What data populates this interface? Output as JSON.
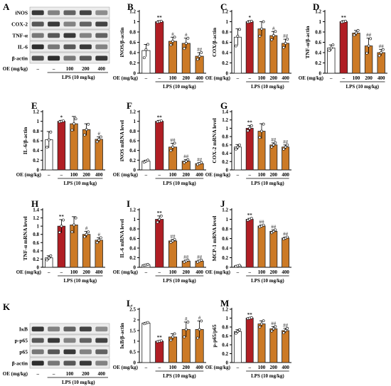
{
  "figure": {
    "colors": {
      "control": "#ffffff",
      "lps": "#b01e24",
      "oe": "#cc7a26",
      "bar_edge": "#222222",
      "sig_single": "#666666",
      "sig_double": "#222222"
    }
  },
  "blots": {
    "A": {
      "label": "A",
      "rows": [
        "iNOS",
        "COX-2",
        "TNF-α",
        "IL-6",
        "β-actin"
      ],
      "oe_label": "OE (mg/kg)",
      "lanes": [
        "–",
        "–",
        "100",
        "200",
        "400"
      ],
      "lps_label": "LPS (10 mg/kg)"
    },
    "K": {
      "label": "K",
      "rows": [
        "IκB",
        "p-p65",
        "p65",
        "β-actin"
      ],
      "oe_label": "OE (mg/kg)",
      "lanes": [
        "–",
        "–",
        "100",
        "200",
        "400"
      ],
      "lps_label": "LPS (10 mg/kg)"
    }
  },
  "chart_data": [
    {
      "id": "B",
      "type": "bar",
      "categories": [
        "–",
        "–",
        "100",
        "200",
        "400"
      ],
      "ylabel": "iNOS/β-actin",
      "ylim": [
        0,
        1.2
      ],
      "yticks": [
        0,
        0.2,
        0.4,
        0.6,
        0.8,
        1.0,
        1.2
      ],
      "ytick_labels": [
        "0",
        "0.2",
        "0.4",
        "0.6",
        "0.8",
        "1",
        "1.2"
      ],
      "values": [
        0.44,
        1.0,
        0.62,
        0.58,
        0.33
      ],
      "errors": [
        0.12,
        0.02,
        0.08,
        0.1,
        0.07
      ],
      "points": [
        [
          0.3,
          0.46,
          0.56
        ],
        [
          0.99,
          1.0,
          1.01
        ],
        [
          0.55,
          0.62,
          0.7
        ],
        [
          0.48,
          0.58,
          0.68
        ],
        [
          0.27,
          0.33,
          0.4
        ]
      ],
      "sig": [
        "",
        "**",
        "#",
        "#",
        "##"
      ],
      "oe_label": "OE (mg/kg)",
      "lps_label": "LPS (10 mg/kg)"
    },
    {
      "id": "C",
      "type": "bar",
      "categories": [
        "–",
        "–",
        "100",
        "200",
        "400"
      ],
      "ylabel": "COX/β-actin",
      "ylim": [
        0,
        1.2
      ],
      "yticks": [
        0,
        0.2,
        0.4,
        0.6,
        0.8,
        1.0,
        1.2
      ],
      "ytick_labels": [
        "0",
        "0.2",
        "0.4",
        "0.6",
        "0.8",
        "1",
        "1.2"
      ],
      "values": [
        0.7,
        1.0,
        0.86,
        0.73,
        0.58
      ],
      "errors": [
        0.16,
        0.02,
        0.14,
        0.08,
        0.08
      ],
      "points": [
        [
          0.53,
          0.72,
          0.85
        ],
        [
          0.99,
          1.0,
          1.01
        ],
        [
          0.72,
          0.86,
          1.0
        ],
        [
          0.65,
          0.73,
          0.81
        ],
        [
          0.5,
          0.58,
          0.66
        ]
      ],
      "sig": [
        "",
        "*",
        "",
        "#",
        "##"
      ],
      "oe_label": "OE (mg/kg)",
      "lps_label": "LPS (10 mg/kg)"
    },
    {
      "id": "D",
      "type": "bar",
      "categories": [
        "–",
        "–",
        "100",
        "200",
        "400"
      ],
      "ylabel": "TNF-α/β-actin",
      "ylim": [
        0,
        1.2
      ],
      "yticks": [
        0,
        0.2,
        0.4,
        0.6,
        0.8,
        1.0,
        1.2
      ],
      "ytick_labels": [
        "0",
        "0.2",
        "0.4",
        "0.6",
        "0.8",
        "1",
        "1.2"
      ],
      "values": [
        0.49,
        1.0,
        0.78,
        0.53,
        0.4
      ],
      "errors": [
        0.06,
        0.02,
        0.05,
        0.15,
        0.06
      ],
      "points": [
        [
          0.44,
          0.49,
          0.55
        ],
        [
          0.99,
          1.0,
          1.01
        ],
        [
          0.74,
          0.78,
          0.83
        ],
        [
          0.39,
          0.53,
          0.67
        ],
        [
          0.34,
          0.4,
          0.46
        ]
      ],
      "sig": [
        "",
        "**",
        "",
        "##",
        "##"
      ],
      "oe_label": "OE (mg/kg)",
      "lps_label": "LPS (10 mg/kg)"
    },
    {
      "id": "E",
      "type": "bar",
      "categories": [
        "–",
        "–",
        "100",
        "200",
        "400"
      ],
      "ylabel": "IL-6/β-actin",
      "ylim": [
        0,
        1.2
      ],
      "yticks": [
        0,
        0.2,
        0.4,
        0.6,
        0.8,
        1.0,
        1.2
      ],
      "ytick_labels": [
        "0",
        "0.2",
        "0.4",
        "0.6",
        "0.8",
        "1",
        "1.2"
      ],
      "values": [
        0.62,
        1.0,
        0.95,
        0.83,
        0.63
      ],
      "errors": [
        0.17,
        0.02,
        0.15,
        0.12,
        0.05
      ],
      "points": [
        [
          0.47,
          0.62,
          0.78
        ],
        [
          0.99,
          1.0,
          1.01
        ],
        [
          0.82,
          0.95,
          1.05
        ],
        [
          0.72,
          0.83,
          0.94
        ],
        [
          0.58,
          0.63,
          0.68
        ]
      ],
      "sig": [
        "",
        "*",
        "",
        "",
        "#"
      ],
      "oe_label": "OE (mg/kg)",
      "lps_label": "LPS (10 mg/kg)"
    },
    {
      "id": "F",
      "type": "bar",
      "categories": [
        "–",
        "–",
        "100",
        "200",
        "400"
      ],
      "ylabel": "iNOS mRNA level",
      "ylim": [
        0,
        1.2
      ],
      "yticks": [
        0,
        0.2,
        0.4,
        0.6,
        0.8,
        1.0,
        1.2
      ],
      "ytick_labels": [
        "0",
        "0.2",
        "0.4",
        "0.6",
        "0.8",
        "1",
        "1.2"
      ],
      "values": [
        0.18,
        1.0,
        0.47,
        0.18,
        0.13
      ],
      "errors": [
        0.02,
        0.02,
        0.08,
        0.03,
        0.02
      ],
      "points": [
        [
          0.16,
          0.18,
          0.2
        ],
        [
          0.99,
          1.0,
          1.01
        ],
        [
          0.4,
          0.47,
          0.55
        ],
        [
          0.15,
          0.18,
          0.21
        ],
        [
          0.11,
          0.13,
          0.15
        ]
      ],
      "sig": [
        "",
        "**",
        "##",
        "##",
        "##"
      ],
      "oe_label": "OE (mg/kg)",
      "lps_label": "LPS (10 mg/kg)"
    },
    {
      "id": "G",
      "type": "bar",
      "categories": [
        "–",
        "–",
        "100",
        "200",
        "400"
      ],
      "ylabel": "COX-2 mRNA level",
      "ylim": [
        0,
        1.4
      ],
      "yticks": [
        0,
        0.2,
        0.4,
        0.6,
        0.8,
        1.0,
        1.2,
        1.4
      ],
      "ytick_labels": [
        "0",
        "0.2",
        "0.4",
        "0.6",
        "0.8",
        "1",
        "1.2",
        "1.4"
      ],
      "values": [
        0.55,
        1.0,
        0.93,
        0.6,
        0.55
      ],
      "errors": [
        0.06,
        0.07,
        0.18,
        0.05,
        0.05
      ],
      "points": [
        [
          0.5,
          0.55,
          0.6
        ],
        [
          0.94,
          1.0,
          1.06
        ],
        [
          0.78,
          0.93,
          1.1
        ],
        [
          0.55,
          0.6,
          0.65
        ],
        [
          0.5,
          0.55,
          0.6
        ]
      ],
      "sig": [
        "",
        "**",
        "",
        "##",
        "##"
      ],
      "oe_label": "OE (mg/kg)",
      "lps_label": "LPS (10 mg/kg)"
    },
    {
      "id": "H",
      "type": "bar",
      "categories": [
        "–",
        "–",
        "100",
        "200",
        "400"
      ],
      "ylabel": "TNF-α mRNA level",
      "ylim": [
        0,
        1.4
      ],
      "yticks": [
        0,
        0.2,
        0.4,
        0.6,
        0.8,
        1.0,
        1.2,
        1.4
      ],
      "ytick_labels": [
        "0",
        "0.2",
        "0.4",
        "0.6",
        "0.8",
        "1",
        "1.2",
        "1.4"
      ],
      "values": [
        0.23,
        1.0,
        1.03,
        0.8,
        0.66
      ],
      "errors": [
        0.05,
        0.16,
        0.2,
        0.07,
        0.06
      ],
      "points": [
        [
          0.18,
          0.23,
          0.28
        ],
        [
          0.85,
          1.0,
          1.15
        ],
        [
          0.86,
          1.03,
          1.2
        ],
        [
          0.74,
          0.8,
          0.86
        ],
        [
          0.6,
          0.66,
          0.72
        ]
      ],
      "sig": [
        "",
        "**",
        "",
        "#",
        "#"
      ],
      "oe_label": "OE (mg/kg)",
      "lps_label": "LPS (10 mg/kg)"
    },
    {
      "id": "I",
      "type": "bar",
      "categories": [
        "–",
        "–",
        "100",
        "200",
        "400"
      ],
      "ylabel": "IL-6 mRNA level",
      "ylim": [
        0,
        1.2
      ],
      "yticks": [
        0,
        0.2,
        0.4,
        0.6,
        0.8,
        1.0,
        1.2
      ],
      "ytick_labels": [
        "0",
        "0.2",
        "0.4",
        "0.6",
        "0.8",
        "1",
        "1.2"
      ],
      "values": [
        0.05,
        1.0,
        0.55,
        0.13,
        0.13
      ],
      "errors": [
        0.01,
        0.07,
        0.03,
        0.02,
        0.02
      ],
      "points": [
        [
          0.04,
          0.05,
          0.06
        ],
        [
          0.94,
          1.0,
          1.07
        ],
        [
          0.52,
          0.55,
          0.58
        ],
        [
          0.11,
          0.13,
          0.15
        ],
        [
          0.11,
          0.13,
          0.15
        ]
      ],
      "sig": [
        "",
        "**",
        "##",
        "##",
        "##"
      ],
      "oe_label": "OE (mg/kg)",
      "lps_label": "LPS (10 mg/kg)"
    },
    {
      "id": "J",
      "type": "bar",
      "categories": [
        "–",
        "–",
        "100",
        "200",
        "400"
      ],
      "ylabel": "MCP-1 mRNA level",
      "ylim": [
        0,
        1.2
      ],
      "yticks": [
        0,
        0.2,
        0.4,
        0.6,
        0.8,
        1.0,
        1.2
      ],
      "ytick_labels": [
        "0",
        "0.2",
        "0.4",
        "0.6",
        "0.8",
        "1",
        "1.2"
      ],
      "values": [
        0.03,
        1.0,
        0.86,
        0.75,
        0.61
      ],
      "errors": [
        0.01,
        0.02,
        0.02,
        0.03,
        0.02
      ],
      "points": [
        [
          0.02,
          0.03,
          0.04
        ],
        [
          0.98,
          1.0,
          1.02
        ],
        [
          0.84,
          0.86,
          0.88
        ],
        [
          0.72,
          0.75,
          0.78
        ],
        [
          0.59,
          0.61,
          0.63
        ]
      ],
      "sig": [
        "",
        "**",
        "##",
        "##",
        "##"
      ],
      "oe_label": "OE (mg/kg)",
      "lps_label": "LPS (10 mg/kg)"
    },
    {
      "id": "L",
      "type": "bar",
      "categories": [
        "–",
        "–",
        "100",
        "200",
        "400"
      ],
      "ylabel": "IκB/β-actin",
      "ylim": [
        0,
        2.5
      ],
      "yticks": [
        0,
        0.5,
        1.0,
        1.5,
        2.0,
        2.5
      ],
      "ytick_labels": [
        "0",
        "0.5",
        "1",
        "1.5",
        "2",
        "2.5"
      ],
      "values": [
        1.85,
        1.0,
        1.2,
        1.55,
        1.55
      ],
      "errors": [
        0.03,
        0.03,
        0.15,
        0.35,
        0.4
      ],
      "points": [
        [
          1.82,
          1.85,
          1.88
        ],
        [
          0.98,
          1.0,
          1.02
        ],
        [
          1.05,
          1.2,
          1.35
        ],
        [
          1.2,
          1.55,
          1.9
        ],
        [
          1.15,
          1.55,
          1.95
        ]
      ],
      "sig": [
        "",
        "**",
        "",
        "#",
        "#"
      ],
      "oe_label": "OE (mg/kg)",
      "lps_label": "LPS (10 mg/kg)"
    },
    {
      "id": "M",
      "type": "bar",
      "categories": [
        "–",
        "–",
        "100",
        "200",
        "400"
      ],
      "ylabel": "p-p65/p65",
      "ylim": [
        0,
        1.2
      ],
      "yticks": [
        0,
        0.2,
        0.4,
        0.6,
        0.8,
        1.0,
        1.2
      ],
      "ytick_labels": [
        "0",
        "0.2",
        "0.4",
        "0.6",
        "0.8",
        "1",
        "1.2"
      ],
      "values": [
        0.7,
        1.0,
        0.87,
        0.76,
        0.72
      ],
      "errors": [
        0.04,
        0.01,
        0.07,
        0.05,
        0.05
      ],
      "points": [
        [
          0.66,
          0.7,
          0.74
        ],
        [
          0.99,
          1.0,
          1.01
        ],
        [
          0.8,
          0.87,
          0.94
        ],
        [
          0.71,
          0.76,
          0.81
        ],
        [
          0.67,
          0.72,
          0.77
        ]
      ],
      "sig": [
        "",
        "**",
        "",
        "##",
        "##"
      ],
      "oe_label": "OE (mg/kg)",
      "lps_label": "LPS (10 mg/kg)"
    }
  ]
}
